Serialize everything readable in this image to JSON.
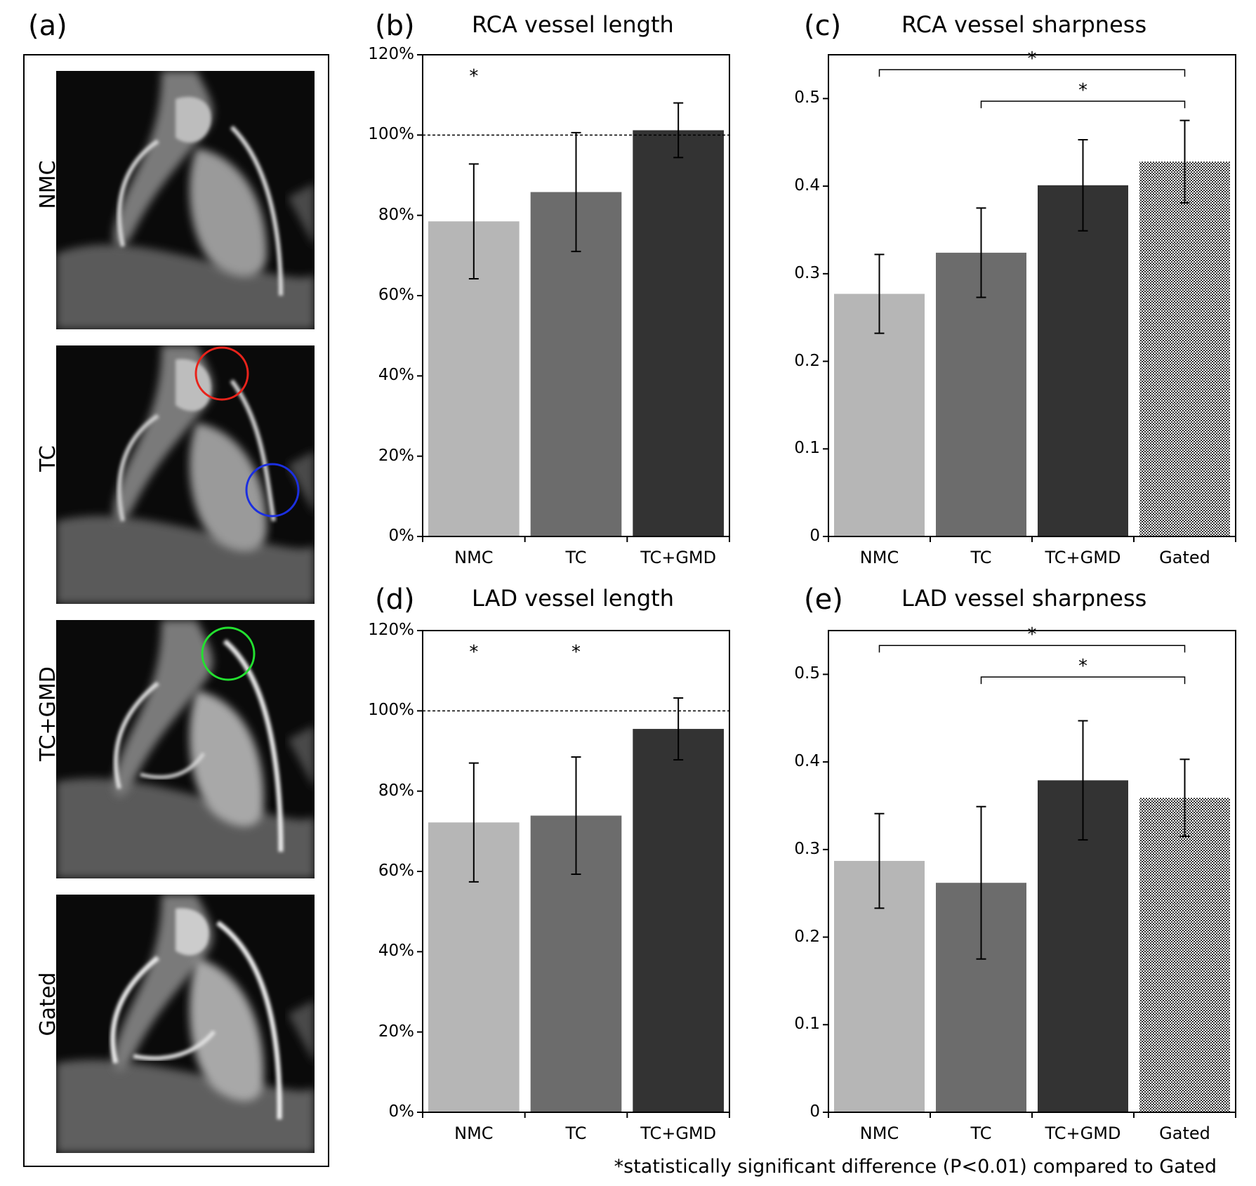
{
  "panels": {
    "a": "(a)",
    "b": "(b)",
    "c": "(c)",
    "d": "(d)",
    "e": "(e)"
  },
  "image_rows": [
    {
      "label": "NMC",
      "markers": []
    },
    {
      "label": "TC",
      "markers": [
        {
          "color": "#e8231b"
        },
        {
          "color": "#1b2fe0"
        }
      ]
    },
    {
      "label": "TC+GMD",
      "markers": [
        {
          "color": "#23e030"
        }
      ]
    },
    {
      "label": "Gated",
      "markers": []
    }
  ],
  "colors": {
    "NMC": "#b6b6b6",
    "TC": "#6c6c6c",
    "TC+GMD": "#333333",
    "Gated": "checkered"
  },
  "footnote": "*statistically significant difference (P<0.01) compared to Gated",
  "chart_data": [
    {
      "id": "b",
      "type": "bar",
      "title": "RCA vessel length",
      "categories": [
        "NMC",
        "TC",
        "TC+GMD"
      ],
      "values": [
        78.5,
        85.8,
        101.2
      ],
      "errors": [
        14.3,
        14.8,
        6.8
      ],
      "ylim": [
        0,
        120
      ],
      "yticks": [
        "0%",
        "20%",
        "40%",
        "60%",
        "80%",
        "100%",
        "120%"
      ],
      "reference_line": 100,
      "significance_stars": [
        {
          "category": "NMC",
          "label": "*"
        }
      ],
      "brackets": []
    },
    {
      "id": "c",
      "type": "bar",
      "title": "RCA vessel sharpness",
      "categories": [
        "NMC",
        "TC",
        "TC+GMD",
        "Gated"
      ],
      "values": [
        0.277,
        0.324,
        0.401,
        0.428
      ],
      "errors": [
        0.045,
        0.051,
        0.052,
        0.047
      ],
      "ylim": [
        0,
        0.55
      ],
      "yticks": [
        "0",
        "0.1",
        "0.2",
        "0.3",
        "0.4",
        "0.5"
      ],
      "significance_stars": [],
      "brackets": [
        {
          "from": "NMC",
          "to": "Gated",
          "level": 0.533,
          "label": "*"
        },
        {
          "from": "TC",
          "to": "Gated",
          "level": 0.497,
          "label": "*"
        }
      ]
    },
    {
      "id": "d",
      "type": "bar",
      "title": "LAD vessel length",
      "categories": [
        "NMC",
        "TC",
        "TC+GMD"
      ],
      "values": [
        72.2,
        73.9,
        95.5
      ],
      "errors": [
        14.8,
        14.6,
        7.7
      ],
      "ylim": [
        0,
        120
      ],
      "yticks": [
        "0%",
        "20%",
        "40%",
        "60%",
        "80%",
        "100%",
        "120%"
      ],
      "reference_line": 100,
      "significance_stars": [
        {
          "category": "NMC",
          "label": "*"
        },
        {
          "category": "TC",
          "label": "*"
        }
      ],
      "brackets": []
    },
    {
      "id": "e",
      "type": "bar",
      "title": "LAD vessel sharpness",
      "categories": [
        "NMC",
        "TC",
        "TC+GMD",
        "Gated"
      ],
      "values": [
        0.287,
        0.262,
        0.379,
        0.359
      ],
      "errors": [
        0.054,
        0.087,
        0.068,
        0.044
      ],
      "ylim": [
        0,
        0.55
      ],
      "yticks": [
        "0",
        "0.1",
        "0.2",
        "0.3",
        "0.4",
        "0.5"
      ],
      "significance_stars": [],
      "brackets": [
        {
          "from": "NMC",
          "to": "Gated",
          "level": 0.533,
          "label": "*"
        },
        {
          "from": "TC",
          "to": "Gated",
          "level": 0.497,
          "label": "*"
        }
      ]
    }
  ]
}
